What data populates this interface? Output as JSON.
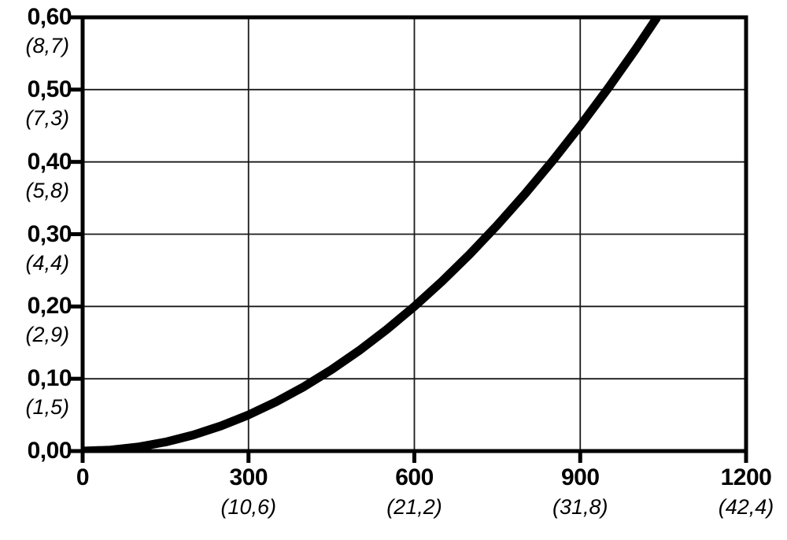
{
  "chart_data": {
    "type": "line",
    "title": "",
    "xlabel": "",
    "ylabel": "",
    "xlim": [
      0,
      1200
    ],
    "ylim": [
      0.0,
      0.6
    ],
    "grid": true,
    "legend": "none",
    "decimal_style": "comma",
    "series": [
      {
        "name": "curve",
        "shape": "quadratic (y = 0.2*(x/600)^2)",
        "points": [
          [
            0,
            0.0
          ],
          [
            50,
            0.0014
          ],
          [
            100,
            0.0056
          ],
          [
            150,
            0.0125
          ],
          [
            200,
            0.0222
          ],
          [
            250,
            0.0347
          ],
          [
            300,
            0.05
          ],
          [
            350,
            0.0681
          ],
          [
            400,
            0.0889
          ],
          [
            450,
            0.1125
          ],
          [
            500,
            0.1389
          ],
          [
            550,
            0.1681
          ],
          [
            600,
            0.2
          ],
          [
            650,
            0.2347
          ],
          [
            700,
            0.2722
          ],
          [
            750,
            0.3125
          ],
          [
            800,
            0.3556
          ],
          [
            850,
            0.4014
          ],
          [
            900,
            0.45
          ],
          [
            950,
            0.5014
          ],
          [
            1000,
            0.5556
          ],
          [
            1039,
            0.6
          ]
        ]
      }
    ],
    "x_axis_ticks": [
      {
        "value": 0,
        "label": "0",
        "sub_label": ""
      },
      {
        "value": 300,
        "label": "300",
        "sub_label": "(10,6)"
      },
      {
        "value": 600,
        "label": "600",
        "sub_label": "(21,2)"
      },
      {
        "value": 900,
        "label": "900",
        "sub_label": "(31,8)"
      },
      {
        "value": 1200,
        "label": "1200",
        "sub_label": "(42,4)"
      }
    ],
    "y_axis_ticks": [
      {
        "value": 0.0,
        "label": "0,00",
        "sub_label": ""
      },
      {
        "value": 0.1,
        "label": "0,10",
        "sub_label": "(1,5)"
      },
      {
        "value": 0.2,
        "label": "0,20",
        "sub_label": "(2,9)"
      },
      {
        "value": 0.3,
        "label": "0,30",
        "sub_label": "(4,4)"
      },
      {
        "value": 0.4,
        "label": "0,40",
        "sub_label": "(5,8)"
      },
      {
        "value": 0.5,
        "label": "0,50",
        "sub_label": "(7,3)"
      },
      {
        "value": 0.6,
        "label": "0,60",
        "sub_label": "(8,7)"
      }
    ]
  },
  "style": {
    "background_color": "#ffffff",
    "text_color": "#000000",
    "curve_color": "#000000",
    "border_color": "#000000",
    "grid_color": "#1a1a1a",
    "tick_color": "#000000"
  }
}
